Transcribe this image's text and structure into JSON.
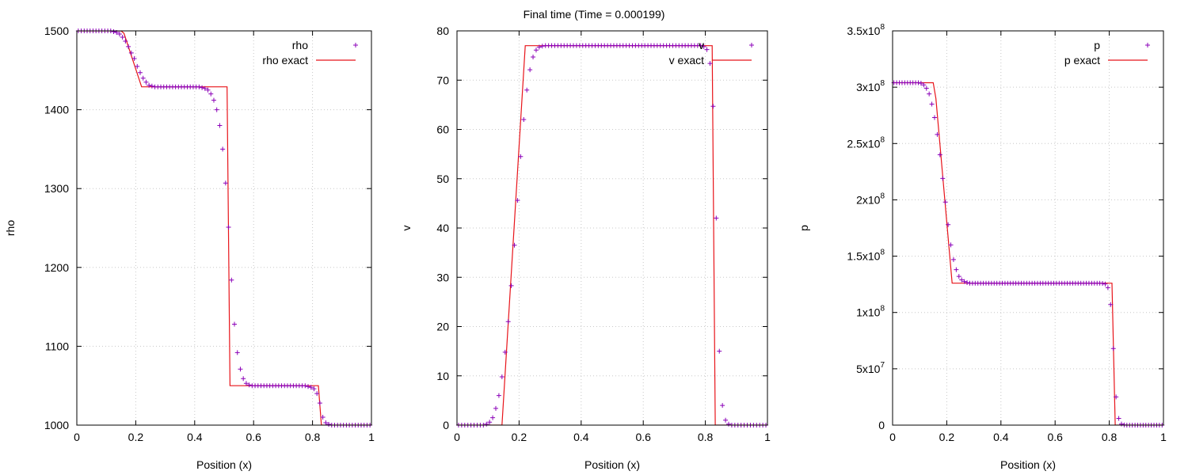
{
  "figure": {
    "title": "Final time (Time = 0.000199)"
  },
  "chart_data": [
    {
      "type": "line+scatter",
      "xlabel": "Position (x)",
      "ylabel": "rho",
      "xlim": [
        0,
        1
      ],
      "ylim": [
        1000,
        1500
      ],
      "xticks": [
        "0",
        "0.2",
        "0.4",
        "0.6",
        "0.8",
        "1"
      ],
      "yticks": [
        "1000",
        "1100",
        "1200",
        "1300",
        "1400",
        "1500"
      ],
      "grid": true,
      "legend_position": "top-right",
      "colors": {
        "points": "#8b00b8",
        "exact": "#e8141a"
      },
      "series": [
        {
          "name": "rho",
          "kind": "points",
          "x": [
            0.005,
            0.015,
            0.025,
            0.035,
            0.045,
            0.055,
            0.065,
            0.075,
            0.085,
            0.095,
            0.105,
            0.115,
            0.125,
            0.135,
            0.145,
            0.155,
            0.165,
            0.175,
            0.185,
            0.195,
            0.205,
            0.215,
            0.225,
            0.235,
            0.245,
            0.255,
            0.265,
            0.275,
            0.285,
            0.295,
            0.305,
            0.315,
            0.325,
            0.335,
            0.345,
            0.355,
            0.365,
            0.375,
            0.385,
            0.395,
            0.405,
            0.415,
            0.425,
            0.435,
            0.445,
            0.455,
            0.465,
            0.475,
            0.485,
            0.495,
            0.505,
            0.515,
            0.525,
            0.535,
            0.545,
            0.555,
            0.565,
            0.575,
            0.585,
            0.595,
            0.605,
            0.615,
            0.625,
            0.635,
            0.645,
            0.655,
            0.665,
            0.675,
            0.685,
            0.695,
            0.705,
            0.715,
            0.725,
            0.735,
            0.745,
            0.755,
            0.765,
            0.775,
            0.785,
            0.795,
            0.805,
            0.815,
            0.825,
            0.835,
            0.845,
            0.855,
            0.865,
            0.875,
            0.885,
            0.895,
            0.905,
            0.915,
            0.925,
            0.935,
            0.945,
            0.955,
            0.965,
            0.975,
            0.985,
            0.995
          ],
          "y": [
            1500,
            1500,
            1500,
            1500,
            1500,
            1500,
            1500,
            1500,
            1500,
            1500,
            1500,
            1500,
            1499,
            1498,
            1496,
            1492,
            1487,
            1480,
            1472,
            1465,
            1455,
            1447,
            1440,
            1435,
            1431,
            1430,
            1429,
            1429,
            1429,
            1429,
            1429,
            1429,
            1429,
            1429,
            1429,
            1429,
            1429,
            1429,
            1429,
            1429,
            1429,
            1429,
            1428,
            1427,
            1425,
            1420,
            1412,
            1400,
            1380,
            1350,
            1307,
            1251,
            1184,
            1128,
            1092,
            1071,
            1059,
            1053,
            1051,
            1050,
            1050,
            1050,
            1050,
            1050,
            1050,
            1050,
            1050,
            1050,
            1050,
            1050,
            1050,
            1050,
            1050,
            1050,
            1050,
            1050,
            1050,
            1050,
            1049,
            1048,
            1046,
            1040,
            1028,
            1010,
            1003,
            1001,
            1000,
            1000,
            1000,
            1000,
            1000,
            1000,
            1000,
            1000,
            1000,
            1000,
            1000,
            1000,
            1000,
            1000
          ]
        },
        {
          "name": "rho exact",
          "kind": "line",
          "x": [
            0,
            0.15,
            0.16,
            0.22,
            0.51,
            0.52,
            0.82,
            0.83,
            1
          ],
          "y": [
            1500,
            1500,
            1497,
            1429,
            1429,
            1050,
            1050,
            1000,
            1000
          ]
        }
      ]
    },
    {
      "type": "line+scatter",
      "xlabel": "Position (x)",
      "ylabel": "v",
      "xlim": [
        0,
        1
      ],
      "ylim": [
        0,
        80
      ],
      "xticks": [
        "0",
        "0.2",
        "0.4",
        "0.6",
        "0.8",
        "1"
      ],
      "yticks": [
        "0",
        "10",
        "20",
        "30",
        "40",
        "50",
        "60",
        "70",
        "80"
      ],
      "grid": true,
      "legend_position": "top-right",
      "colors": {
        "points": "#8b00b8",
        "exact": "#e8141a"
      },
      "series": [
        {
          "name": "v",
          "kind": "points",
          "x": [
            0.005,
            0.015,
            0.025,
            0.035,
            0.045,
            0.055,
            0.065,
            0.075,
            0.085,
            0.095,
            0.105,
            0.115,
            0.125,
            0.135,
            0.145,
            0.155,
            0.165,
            0.175,
            0.185,
            0.195,
            0.205,
            0.215,
            0.225,
            0.235,
            0.245,
            0.255,
            0.265,
            0.275,
            0.285,
            0.295,
            0.305,
            0.315,
            0.325,
            0.335,
            0.345,
            0.355,
            0.365,
            0.375,
            0.385,
            0.395,
            0.405,
            0.415,
            0.425,
            0.435,
            0.445,
            0.455,
            0.465,
            0.475,
            0.485,
            0.495,
            0.505,
            0.515,
            0.525,
            0.535,
            0.545,
            0.555,
            0.565,
            0.575,
            0.585,
            0.595,
            0.605,
            0.615,
            0.625,
            0.635,
            0.645,
            0.655,
            0.665,
            0.675,
            0.685,
            0.695,
            0.705,
            0.715,
            0.725,
            0.735,
            0.745,
            0.755,
            0.765,
            0.775,
            0.785,
            0.795,
            0.805,
            0.815,
            0.825,
            0.835,
            0.845,
            0.855,
            0.865,
            0.875,
            0.885,
            0.895,
            0.905,
            0.915,
            0.925,
            0.935,
            0.945,
            0.955,
            0.965,
            0.975,
            0.985,
            0.995
          ],
          "y": [
            0,
            0,
            0,
            0,
            0,
            0,
            0,
            0,
            0,
            0.2,
            0.6,
            1.5,
            3.4,
            6,
            9.8,
            14.8,
            21,
            28.3,
            36.5,
            45.6,
            54.5,
            62,
            68,
            72.1,
            74.7,
            76.1,
            76.7,
            76.9,
            77,
            77,
            77,
            77,
            77,
            77,
            77,
            77,
            77,
            77,
            77,
            77,
            77,
            77,
            77,
            77,
            77,
            77,
            77,
            77,
            77,
            77,
            77,
            77,
            77,
            77,
            77,
            77,
            77,
            77,
            77,
            77,
            77,
            77,
            77,
            77,
            77,
            77,
            77,
            77,
            77,
            77,
            77,
            77,
            77,
            77,
            77,
            77,
            77,
            77,
            77,
            76.8,
            76.2,
            73.4,
            64.7,
            42,
            15,
            4,
            1,
            0.2,
            0,
            0,
            0,
            0,
            0,
            0,
            0,
            0,
            0,
            0,
            0,
            0
          ]
        },
        {
          "name": "v exact",
          "kind": "line",
          "x": [
            0,
            0.145,
            0.22,
            0.822,
            0.832,
            1
          ],
          "y": [
            0,
            0,
            77,
            77,
            0,
            0
          ]
        }
      ]
    },
    {
      "type": "line+scatter",
      "xlabel": "Position (x)",
      "ylabel": "p",
      "xlim": [
        0,
        1
      ],
      "ylim": [
        0,
        350000000
      ],
      "xticks": [
        "0",
        "0.2",
        "0.4",
        "0.6",
        "0.8",
        "1"
      ],
      "yticks": [
        {
          "base": "0",
          "exp": ""
        },
        {
          "base": "5x10",
          "exp": "7"
        },
        {
          "base": "1x10",
          "exp": "8"
        },
        {
          "base": "1.5x10",
          "exp": "8"
        },
        {
          "base": "2x10",
          "exp": "8"
        },
        {
          "base": "2.5x10",
          "exp": "8"
        },
        {
          "base": "3x10",
          "exp": "8"
        },
        {
          "base": "3.5x10",
          "exp": "8"
        }
      ],
      "grid": true,
      "legend_position": "top-right",
      "colors": {
        "points": "#8b00b8",
        "exact": "#e8141a"
      },
      "series": [
        {
          "name": "p",
          "kind": "points",
          "x": [
            0.005,
            0.015,
            0.025,
            0.035,
            0.045,
            0.055,
            0.065,
            0.075,
            0.085,
            0.095,
            0.105,
            0.115,
            0.125,
            0.135,
            0.145,
            0.155,
            0.165,
            0.175,
            0.185,
            0.195,
            0.205,
            0.215,
            0.225,
            0.235,
            0.245,
            0.255,
            0.265,
            0.275,
            0.285,
            0.295,
            0.305,
            0.315,
            0.325,
            0.335,
            0.345,
            0.355,
            0.365,
            0.375,
            0.385,
            0.395,
            0.405,
            0.415,
            0.425,
            0.435,
            0.445,
            0.455,
            0.465,
            0.475,
            0.485,
            0.495,
            0.505,
            0.515,
            0.525,
            0.535,
            0.545,
            0.555,
            0.565,
            0.575,
            0.585,
            0.595,
            0.605,
            0.615,
            0.625,
            0.635,
            0.645,
            0.655,
            0.665,
            0.675,
            0.685,
            0.695,
            0.705,
            0.715,
            0.725,
            0.735,
            0.745,
            0.755,
            0.765,
            0.775,
            0.785,
            0.795,
            0.805,
            0.815,
            0.825,
            0.835,
            0.845,
            0.855,
            0.865,
            0.875,
            0.885,
            0.895,
            0.905,
            0.915,
            0.925,
            0.935,
            0.945,
            0.955,
            0.965,
            0.975,
            0.985,
            0.995
          ],
          "y": [
            304000000,
            304000000,
            304000000,
            304000000,
            304000000,
            304000000,
            304000000,
            304000000,
            304000000,
            304000000,
            303500000,
            302000000,
            299000000,
            294000000,
            285000000,
            273000000,
            258000000,
            240000000,
            219000000,
            198000000,
            178000000,
            160000000,
            147000000,
            138000000,
            132000000,
            129000000,
            127500000,
            126500000,
            126000000,
            126000000,
            126000000,
            126000000,
            126000000,
            126000000,
            126000000,
            126000000,
            126000000,
            126000000,
            126000000,
            126000000,
            126000000,
            126000000,
            126000000,
            126000000,
            126000000,
            126000000,
            126000000,
            126000000,
            126000000,
            126000000,
            126000000,
            126000000,
            126000000,
            126000000,
            126000000,
            126000000,
            126000000,
            126000000,
            126000000,
            126000000,
            126000000,
            126000000,
            126000000,
            126000000,
            126000000,
            126000000,
            126000000,
            126000000,
            126000000,
            126000000,
            126000000,
            126000000,
            126000000,
            126000000,
            126000000,
            126000000,
            126000000,
            125800000,
            125300000,
            122000000,
            107000000,
            68000000,
            25000000,
            6000000,
            1000000,
            200000,
            0,
            0,
            0,
            0,
            0,
            0,
            0,
            0,
            0,
            0,
            0,
            0,
            0,
            0
          ]
        },
        {
          "name": "p exact",
          "kind": "line",
          "x": [
            0,
            0.15,
            0.16,
            0.22,
            0.81,
            0.822,
            1
          ],
          "y": [
            304000000,
            304000000,
            290000000,
            126000000,
            126000000,
            0,
            0
          ]
        }
      ]
    }
  ]
}
